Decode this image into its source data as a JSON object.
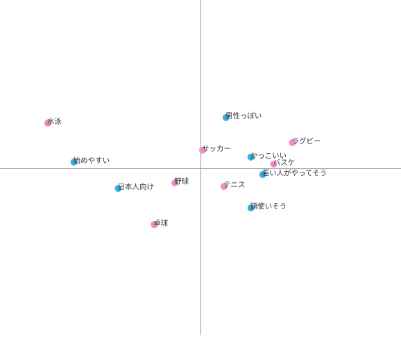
{
  "chart_data": {
    "type": "scatter",
    "title": "",
    "xlabel": "",
    "ylabel": "",
    "xlim": [
      -2.9,
      2.9
    ],
    "ylim": [
      -2.4,
      2.42
    ],
    "grid": false,
    "axes": "crosshair-through-origin",
    "series": [
      {
        "key": "sports",
        "color": "#f08cc8",
        "points": [
          {
            "label": "水泳",
            "x": -2.21,
            "y": 0.65
          },
          {
            "label": "サッカー",
            "x": 0.03,
            "y": 0.26
          },
          {
            "label": "ラグビー",
            "x": 1.33,
            "y": 0.37
          },
          {
            "label": "バスケ",
            "x": 1.06,
            "y": 0.06
          },
          {
            "label": "野球",
            "x": -0.37,
            "y": -0.21
          },
          {
            "label": "テニス",
            "x": 0.34,
            "y": -0.26
          },
          {
            "label": "卓球",
            "x": -0.67,
            "y": -0.81
          }
        ]
      },
      {
        "key": "attributes",
        "color": "#3aaee0",
        "points": [
          {
            "label": "男性っぽい",
            "x": 0.37,
            "y": 0.73
          },
          {
            "label": "かっこいい",
            "x": 0.73,
            "y": 0.16
          },
          {
            "label": "若い人がやってそう",
            "x": 0.9,
            "y": -0.09
          },
          {
            "label": "始めやすい",
            "x": -1.83,
            "y": 0.09
          },
          {
            "label": "日本人向け",
            "x": -1.19,
            "y": -0.29
          },
          {
            "label": "頭使いそう",
            "x": 0.73,
            "y": -0.57
          }
        ]
      }
    ],
    "axis_color": "#999999",
    "label_color": "#333333"
  }
}
